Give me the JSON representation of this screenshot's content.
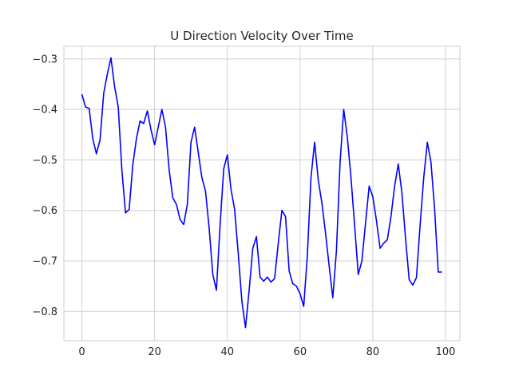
{
  "chart_data": {
    "type": "line",
    "title": "U Direction Velocity Over Time",
    "xlabel": "",
    "ylabel": "",
    "xlim": [
      -4.95,
      103.95
    ],
    "ylim": [
      -0.858,
      -0.275
    ],
    "xticks": [
      0,
      20,
      40,
      60,
      80,
      100
    ],
    "yticks": [
      -0.8,
      -0.7,
      -0.6,
      -0.5,
      -0.4,
      -0.3
    ],
    "xtick_labels": [
      "0",
      "20",
      "40",
      "60",
      "80",
      "100"
    ],
    "ytick_labels": [
      "−0.8",
      "−0.7",
      "−0.6",
      "−0.5",
      "−0.4",
      "−0.3"
    ],
    "grid": true,
    "series": [
      {
        "color": "#0000ff",
        "x": [
          0,
          1,
          2,
          3,
          4,
          5,
          6,
          7,
          8,
          9,
          10,
          11,
          12,
          13,
          14,
          15,
          16,
          17,
          18,
          19,
          20,
          21,
          22,
          23,
          24,
          25,
          26,
          27,
          28,
          29,
          30,
          31,
          32,
          33,
          34,
          35,
          36,
          37,
          38,
          39,
          40,
          41,
          42,
          43,
          44,
          45,
          46,
          47,
          48,
          49,
          50,
          51,
          52,
          53,
          54,
          55,
          56,
          57,
          58,
          59,
          60,
          61,
          62,
          63,
          64,
          65,
          66,
          67,
          68,
          69,
          70,
          71,
          72,
          73,
          74,
          75,
          76,
          77,
          78,
          79,
          80,
          81,
          82,
          83,
          84,
          85,
          86,
          87,
          88,
          89,
          90,
          91,
          92,
          93,
          94,
          95,
          96,
          97,
          98,
          99
        ],
        "y": [
          -0.37,
          -0.395,
          -0.398,
          -0.458,
          -0.488,
          -0.46,
          -0.368,
          -0.33,
          -0.298,
          -0.355,
          -0.395,
          -0.52,
          -0.605,
          -0.598,
          -0.51,
          -0.458,
          -0.423,
          -0.428,
          -0.403,
          -0.44,
          -0.47,
          -0.435,
          -0.4,
          -0.435,
          -0.52,
          -0.575,
          -0.588,
          -0.618,
          -0.628,
          -0.588,
          -0.465,
          -0.435,
          -0.485,
          -0.535,
          -0.562,
          -0.635,
          -0.727,
          -0.758,
          -0.63,
          -0.518,
          -0.49,
          -0.558,
          -0.598,
          -0.685,
          -0.78,
          -0.832,
          -0.758,
          -0.675,
          -0.652,
          -0.732,
          -0.74,
          -0.732,
          -0.742,
          -0.735,
          -0.665,
          -0.6,
          -0.612,
          -0.72,
          -0.745,
          -0.75,
          -0.765,
          -0.79,
          -0.69,
          -0.535,
          -0.465,
          -0.54,
          -0.585,
          -0.645,
          -0.71,
          -0.773,
          -0.68,
          -0.505,
          -0.4,
          -0.455,
          -0.535,
          -0.63,
          -0.727,
          -0.7,
          -0.625,
          -0.552,
          -0.573,
          -0.62,
          -0.675,
          -0.665,
          -0.658,
          -0.612,
          -0.552,
          -0.508,
          -0.565,
          -0.655,
          -0.737,
          -0.748,
          -0.733,
          -0.63,
          -0.535,
          -0.465,
          -0.505,
          -0.598,
          -0.722,
          -0.722
        ]
      }
    ]
  }
}
